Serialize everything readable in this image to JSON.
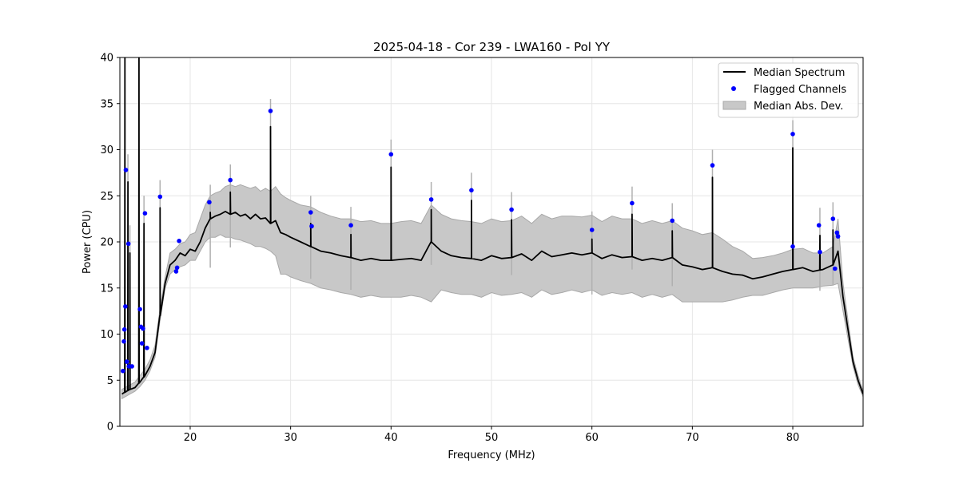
{
  "chart_data": {
    "type": "line",
    "title": "2025-04-18 - Cor 239 - LWA160 - Pol YY",
    "xlabel": "Frequency (MHz)",
    "ylabel": "Power (CPU)",
    "xlim": [
      13.0,
      87.0
    ],
    "ylim": [
      0,
      40
    ],
    "xticks": [
      20,
      30,
      40,
      50,
      60,
      70,
      80
    ],
    "yticks": [
      0,
      5,
      10,
      15,
      20,
      25,
      30,
      35,
      40
    ],
    "grid": true,
    "legend_position": "top-right",
    "legend": [
      {
        "label": "Median Spectrum",
        "kind": "line",
        "color": "#000000"
      },
      {
        "label": "Flagged Channels",
        "kind": "marker",
        "color": "#0000ff"
      },
      {
        "label": "Median Abs. Dev.",
        "kind": "band",
        "color": "#a8a8a8"
      }
    ],
    "series": [
      {
        "name": "Median Spectrum",
        "color": "#000000",
        "x": [
          13.2,
          14.0,
          14.5,
          15.0,
          15.5,
          16.0,
          16.5,
          17.0,
          17.5,
          18.0,
          18.5,
          19.0,
          19.5,
          20.0,
          20.5,
          21.0,
          21.5,
          22.0,
          22.5,
          23.0,
          23.5,
          24.0,
          24.5,
          25.0,
          25.5,
          26.0,
          26.5,
          27.0,
          27.5,
          28.0,
          28.5,
          29.0,
          29.5,
          30.0,
          31.0,
          32.0,
          33.0,
          34.0,
          35.0,
          36.0,
          37.0,
          38.0,
          39.0,
          40.0,
          41.0,
          42.0,
          43.0,
          44.0,
          45.0,
          46.0,
          47.0,
          48.0,
          49.0,
          50.0,
          51.0,
          52.0,
          53.0,
          54.0,
          55.0,
          56.0,
          57.0,
          58.0,
          59.0,
          60.0,
          61.0,
          62.0,
          63.0,
          64.0,
          65.0,
          66.0,
          67.0,
          68.0,
          69.0,
          70.0,
          71.0,
          72.0,
          73.0,
          74.0,
          75.0,
          76.0,
          77.0,
          78.0,
          79.0,
          80.0,
          81.0,
          82.0,
          83.0,
          84.0,
          84.5,
          85.0,
          85.5,
          86.0,
          86.5,
          87.0
        ],
        "y": [
          3.5,
          4.0,
          4.2,
          4.8,
          5.5,
          6.5,
          8.0,
          12.0,
          15.5,
          17.5,
          18.0,
          18.8,
          18.5,
          19.2,
          19.0,
          20.0,
          21.5,
          22.5,
          22.8,
          23.0,
          23.3,
          23.0,
          23.2,
          22.8,
          23.0,
          22.5,
          23.0,
          22.5,
          22.6,
          22.0,
          22.3,
          21.0,
          20.8,
          20.5,
          20.0,
          19.5,
          19.0,
          18.8,
          18.5,
          18.3,
          18.0,
          18.2,
          18.0,
          18.0,
          18.1,
          18.2,
          18.0,
          20.0,
          19.0,
          18.5,
          18.3,
          18.2,
          18.0,
          18.5,
          18.2,
          18.3,
          18.7,
          18.0,
          19.0,
          18.4,
          18.6,
          18.8,
          18.6,
          18.8,
          18.2,
          18.6,
          18.3,
          18.4,
          18.0,
          18.2,
          18.0,
          18.3,
          17.5,
          17.3,
          17.0,
          17.2,
          16.8,
          16.5,
          16.4,
          16.0,
          16.2,
          16.5,
          16.8,
          17.0,
          17.2,
          16.8,
          17.0,
          17.5,
          19.0,
          14.0,
          10.5,
          7.0,
          5.0,
          3.5
        ]
      }
    ],
    "band": {
      "name": "Median Abs. Dev.",
      "color": "#a8a8a8",
      "x": [
        13.2,
        14.0,
        14.5,
        15.0,
        15.5,
        16.0,
        16.5,
        17.0,
        17.5,
        18.0,
        18.5,
        19.0,
        19.5,
        20.0,
        20.5,
        21.0,
        21.5,
        22.0,
        22.5,
        23.0,
        23.5,
        24.0,
        24.5,
        25.0,
        25.5,
        26.0,
        26.5,
        27.0,
        27.5,
        28.0,
        28.5,
        29.0,
        29.5,
        30.0,
        31.0,
        32.0,
        33.0,
        34.0,
        35.0,
        36.0,
        37.0,
        38.0,
        39.0,
        40.0,
        41.0,
        42.0,
        43.0,
        44.0,
        45.0,
        46.0,
        47.0,
        48.0,
        49.0,
        50.0,
        51.0,
        52.0,
        53.0,
        54.0,
        55.0,
        56.0,
        57.0,
        58.0,
        59.0,
        60.0,
        61.0,
        62.0,
        63.0,
        64.0,
        65.0,
        66.0,
        67.0,
        68.0,
        69.0,
        70.0,
        71.0,
        72.0,
        73.0,
        74.0,
        75.0,
        76.0,
        77.0,
        78.0,
        79.0,
        80.0,
        81.0,
        82.0,
        83.0,
        84.0,
        84.5,
        85.0,
        85.5,
        86.0,
        86.5,
        87.0
      ],
      "lower": [
        3.0,
        3.5,
        3.8,
        4.3,
        5.0,
        6.0,
        7.5,
        11.5,
        15.0,
        16.5,
        17.0,
        17.3,
        17.5,
        18.0,
        18.0,
        19.0,
        20.0,
        20.5,
        20.5,
        20.8,
        20.5,
        20.5,
        20.3,
        20.2,
        20.0,
        19.8,
        19.5,
        19.5,
        19.3,
        19.0,
        18.5,
        16.5,
        16.5,
        16.2,
        15.8,
        15.5,
        15.0,
        14.8,
        14.5,
        14.3,
        14.0,
        14.2,
        14.0,
        14.0,
        14.0,
        14.2,
        14.0,
        13.5,
        14.8,
        14.5,
        14.3,
        14.3,
        14.0,
        14.5,
        14.2,
        14.3,
        14.5,
        14.0,
        14.8,
        14.3,
        14.5,
        14.8,
        14.5,
        14.8,
        14.2,
        14.5,
        14.3,
        14.5,
        14.0,
        14.3,
        14.0,
        14.3,
        13.5,
        13.5,
        13.5,
        13.5,
        13.5,
        13.7,
        14.0,
        14.2,
        14.2,
        14.5,
        14.8,
        15.0,
        15.0,
        15.0,
        15.2,
        15.3,
        15.5,
        12.5,
        9.5,
        6.5,
        4.5,
        3.2
      ],
      "upper": [
        4.0,
        4.5,
        4.8,
        5.5,
        6.2,
        7.2,
        8.8,
        12.8,
        16.2,
        18.8,
        19.2,
        19.8,
        20.0,
        20.8,
        21.0,
        22.5,
        24.0,
        25.0,
        25.3,
        25.5,
        26.0,
        26.2,
        26.0,
        26.2,
        26.0,
        25.8,
        26.0,
        25.5,
        25.8,
        25.5,
        26.0,
        25.2,
        24.8,
        24.5,
        24.0,
        23.8,
        23.2,
        22.8,
        22.5,
        22.5,
        22.2,
        22.3,
        22.0,
        22.0,
        22.2,
        22.3,
        22.0,
        24.0,
        23.0,
        22.5,
        22.3,
        22.2,
        22.0,
        22.5,
        22.2,
        22.3,
        22.8,
        22.0,
        23.0,
        22.5,
        22.8,
        22.8,
        22.7,
        22.9,
        22.2,
        22.8,
        22.5,
        22.5,
        22.0,
        22.3,
        22.0,
        22.3,
        21.5,
        21.2,
        20.8,
        21.0,
        20.3,
        19.5,
        19.0,
        18.2,
        18.3,
        18.5,
        18.8,
        19.2,
        19.3,
        18.8,
        18.8,
        19.5,
        22.5,
        15.5,
        11.5,
        7.5,
        5.5,
        3.8
      ]
    },
    "spikes": [
      {
        "x": 13.5,
        "y": 40.0
      },
      {
        "x": 13.8,
        "y": 26.5
      },
      {
        "x": 14.0,
        "y": 18.8
      },
      {
        "x": 14.9,
        "y": 40.0
      },
      {
        "x": 15.4,
        "y": 22.0
      },
      {
        "x": 17.0,
        "y": 23.7
      },
      {
        "x": 22.0,
        "y": 23.2
      },
      {
        "x": 24.0,
        "y": 25.4
      },
      {
        "x": 28.0,
        "y": 32.5
      },
      {
        "x": 32.0,
        "y": 22.0
      },
      {
        "x": 36.0,
        "y": 20.8
      },
      {
        "x": 40.0,
        "y": 28.1
      },
      {
        "x": 44.0,
        "y": 23.5
      },
      {
        "x": 48.0,
        "y": 24.5
      },
      {
        "x": 52.0,
        "y": 22.4
      },
      {
        "x": 60.0,
        "y": 20.3
      },
      {
        "x": 64.0,
        "y": 23.0
      },
      {
        "x": 68.0,
        "y": 21.2
      },
      {
        "x": 72.0,
        "y": 27.0
      },
      {
        "x": 80.0,
        "y": 30.2
      },
      {
        "x": 82.7,
        "y": 20.7
      },
      {
        "x": 84.0,
        "y": 21.3
      }
    ],
    "flagged_channels": {
      "name": "Flagged Channels",
      "color": "#0000ff",
      "points": [
        [
          13.3,
          6.0
        ],
        [
          13.4,
          9.2
        ],
        [
          13.45,
          10.5
        ],
        [
          13.55,
          13.0
        ],
        [
          13.6,
          27.8
        ],
        [
          13.7,
          7.0
        ],
        [
          13.85,
          19.8
        ],
        [
          13.9,
          6.5
        ],
        [
          14.2,
          6.5
        ],
        [
          15.0,
          12.7
        ],
        [
          15.1,
          10.8
        ],
        [
          15.2,
          9.0
        ],
        [
          15.3,
          10.6
        ],
        [
          15.5,
          23.1
        ],
        [
          15.7,
          8.5
        ],
        [
          17.0,
          24.9
        ],
        [
          18.6,
          16.8
        ],
        [
          18.7,
          17.2
        ],
        [
          18.9,
          20.1
        ],
        [
          21.9,
          24.3
        ],
        [
          24.0,
          26.7
        ],
        [
          28.0,
          34.2
        ],
        [
          32.0,
          23.2
        ],
        [
          32.1,
          21.7
        ],
        [
          36.0,
          21.8
        ],
        [
          40.0,
          29.5
        ],
        [
          44.0,
          24.6
        ],
        [
          48.0,
          25.6
        ],
        [
          52.0,
          23.5
        ],
        [
          60.0,
          21.3
        ],
        [
          64.0,
          24.2
        ],
        [
          68.0,
          22.3
        ],
        [
          72.0,
          28.3
        ],
        [
          80.0,
          31.7
        ],
        [
          80.0,
          19.5
        ],
        [
          82.6,
          21.8
        ],
        [
          82.7,
          18.9
        ],
        [
          84.0,
          22.5
        ],
        [
          84.2,
          17.1
        ],
        [
          84.4,
          21.0
        ],
        [
          84.5,
          20.6
        ]
      ]
    }
  }
}
